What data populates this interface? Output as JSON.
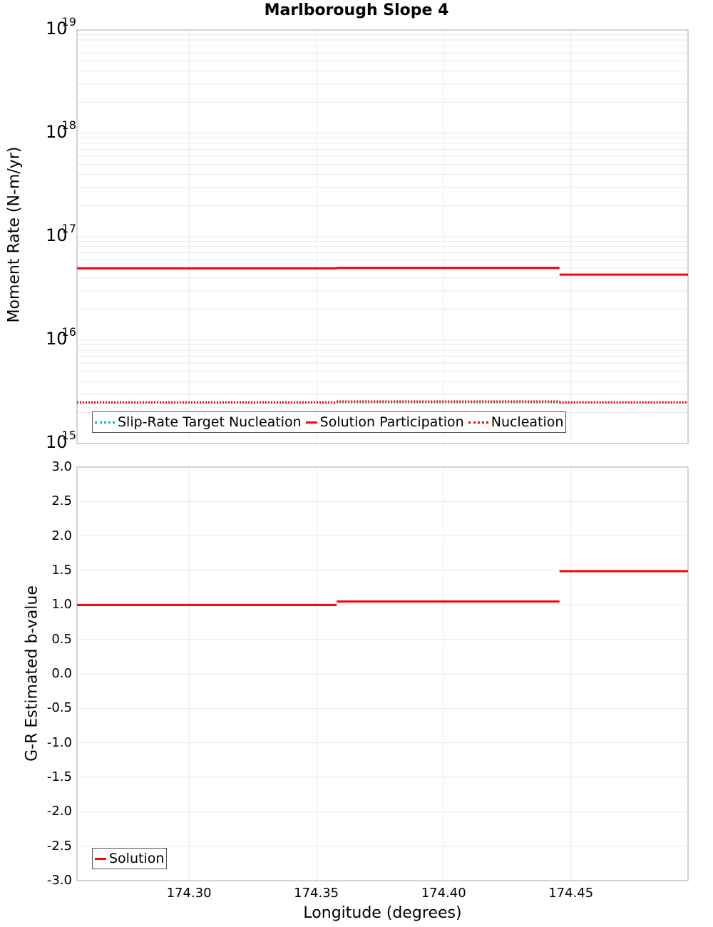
{
  "title": "Marlborough Slope 4",
  "colors": {
    "solution": "#ff0000",
    "target": "#19b3b3",
    "grid": "#e8e8e8",
    "frame": "#aaaaaa"
  },
  "top_plot": {
    "ylabel": "Moment Rate (N-m/yr)",
    "yticks": [
      "10",
      "10",
      "10",
      "10",
      "10"
    ],
    "ytick_exponents": [
      "19",
      "18",
      "17",
      "16",
      "15"
    ],
    "legend": [
      {
        "label": "Slip-Rate Target Nucleation",
        "style": "dotted",
        "color": "#19b3b3"
      },
      {
        "label": "Solution Participation",
        "style": "solid",
        "color": "#ff0000"
      },
      {
        "label": "Nucleation",
        "style": "dotted",
        "color": "#ff0000"
      }
    ]
  },
  "bottom_plot": {
    "ylabel": "G-R Estimated b-value",
    "yticks": [
      "3.0",
      "2.5",
      "2.0",
      "1.5",
      "1.0",
      "0.5",
      "0.0",
      "-0.5",
      "-1.0",
      "-1.5",
      "-2.0",
      "-2.5",
      "-3.0"
    ],
    "legend": [
      {
        "label": "Solution",
        "style": "solid",
        "color": "#ff0000"
      }
    ]
  },
  "x_axis": {
    "xlabel": "Longitude (degrees)",
    "xticks": [
      "174.30",
      "174.35",
      "174.40",
      "174.45"
    ]
  },
  "chart_data": [
    {
      "type": "line",
      "title": "Marlborough Slope 4",
      "xlabel": "Longitude (degrees)",
      "ylabel": "Moment Rate (N-m/yr)",
      "yscale": "log",
      "xlim": [
        174.256,
        174.496
      ],
      "ylim": [
        1000000000000000.0,
        1e+19
      ],
      "grid": true,
      "legend_position": "lower left",
      "segments_x": [
        [
          174.256,
          174.358
        ],
        [
          174.358,
          174.4455
        ],
        [
          174.4455,
          174.496
        ]
      ],
      "series": [
        {
          "name": "Slip-Rate Target Nucleation",
          "style": "dotted",
          "color": "#19b3b3",
          "values": [
            2500000000000000.0,
            2500000000000000.0,
            2500000000000000.0
          ]
        },
        {
          "name": "Solution Participation",
          "style": "solid",
          "color": "#ff0000",
          "values": [
            4.95e+16,
            5e+16,
            4.3e+16
          ]
        },
        {
          "name": "Nucleation",
          "style": "dotted",
          "color": "#ff0000",
          "values": [
            2500000000000000.0,
            2550000000000000.0,
            2500000000000000.0
          ]
        }
      ]
    },
    {
      "type": "line",
      "xlabel": "Longitude (degrees)",
      "ylabel": "G-R Estimated b-value",
      "xlim": [
        174.256,
        174.496
      ],
      "ylim": [
        -3.0,
        3.0
      ],
      "grid": true,
      "legend_position": "lower left",
      "segments_x": [
        [
          174.256,
          174.358
        ],
        [
          174.358,
          174.4455
        ],
        [
          174.4455,
          174.496
        ]
      ],
      "series": [
        {
          "name": "Solution",
          "style": "solid",
          "color": "#ff0000",
          "values": [
            1.0,
            1.05,
            1.49
          ]
        }
      ]
    }
  ]
}
